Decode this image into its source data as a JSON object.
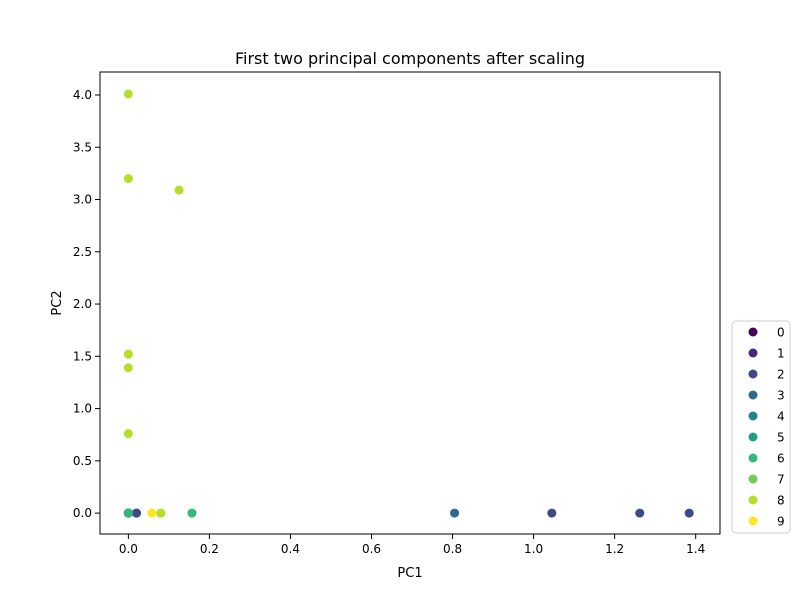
{
  "chart_data": {
    "type": "scatter",
    "title": "First two principal components after scaling",
    "xlabel": "PC1",
    "ylabel": "PC2",
    "xlim": [
      -0.07,
      1.46
    ],
    "ylim": [
      -0.2,
      4.22
    ],
    "xticks": [
      0.0,
      0.2,
      0.4,
      0.6,
      0.8,
      1.0,
      1.2,
      1.4
    ],
    "xtick_labels": [
      "0.0",
      "0.2",
      "0.4",
      "0.6",
      "0.8",
      "1.0",
      "1.2",
      "1.4"
    ],
    "yticks": [
      0.0,
      0.5,
      1.0,
      1.5,
      2.0,
      2.5,
      3.0,
      3.5,
      4.0
    ],
    "ytick_labels": [
      "0.0",
      "0.5",
      "1.0",
      "1.5",
      "2.0",
      "2.5",
      "3.0",
      "3.5",
      "4.0"
    ],
    "grid": false,
    "legend_placement": "outside-lower-right",
    "series": [
      {
        "name": "0",
        "color": "#440154",
        "x": [
          0.0,
          0.0
        ],
        "y": [
          0.0,
          0.0
        ]
      },
      {
        "name": "1",
        "color": "#482878",
        "x": [
          0.0,
          0.02
        ],
        "y": [
          0.0,
          0.0
        ]
      },
      {
        "name": "2",
        "color": "#3e4989",
        "x": [
          1.045,
          1.262,
          1.384,
          0.02
        ],
        "y": [
          0.0,
          0.0,
          0.0,
          0.0
        ]
      },
      {
        "name": "3",
        "color": "#31688e",
        "x": [
          0.805
        ],
        "y": [
          0.0
        ]
      },
      {
        "name": "4",
        "color": "#26828e",
        "x": [
          0.0
        ],
        "y": [
          0.0
        ]
      },
      {
        "name": "5",
        "color": "#1f9e89",
        "x": [
          0.0
        ],
        "y": [
          0.0
        ]
      },
      {
        "name": "6",
        "color": "#35b779",
        "x": [
          0.157,
          0.0
        ],
        "y": [
          0.0,
          0.0
        ]
      },
      {
        "name": "7",
        "color": "#6ece58",
        "x": [
          0.08
        ],
        "y": [
          0.0
        ]
      },
      {
        "name": "8",
        "color": "#b5de2b",
        "x": [
          0.0,
          0.0,
          0.125,
          0.0,
          0.0,
          0.0,
          0.08
        ],
        "y": [
          4.01,
          3.2,
          3.09,
          1.52,
          1.39,
          0.76,
          0.0
        ]
      },
      {
        "name": "9",
        "color": "#fde725",
        "x": [
          0.058
        ],
        "y": [
          0.0
        ]
      }
    ]
  }
}
